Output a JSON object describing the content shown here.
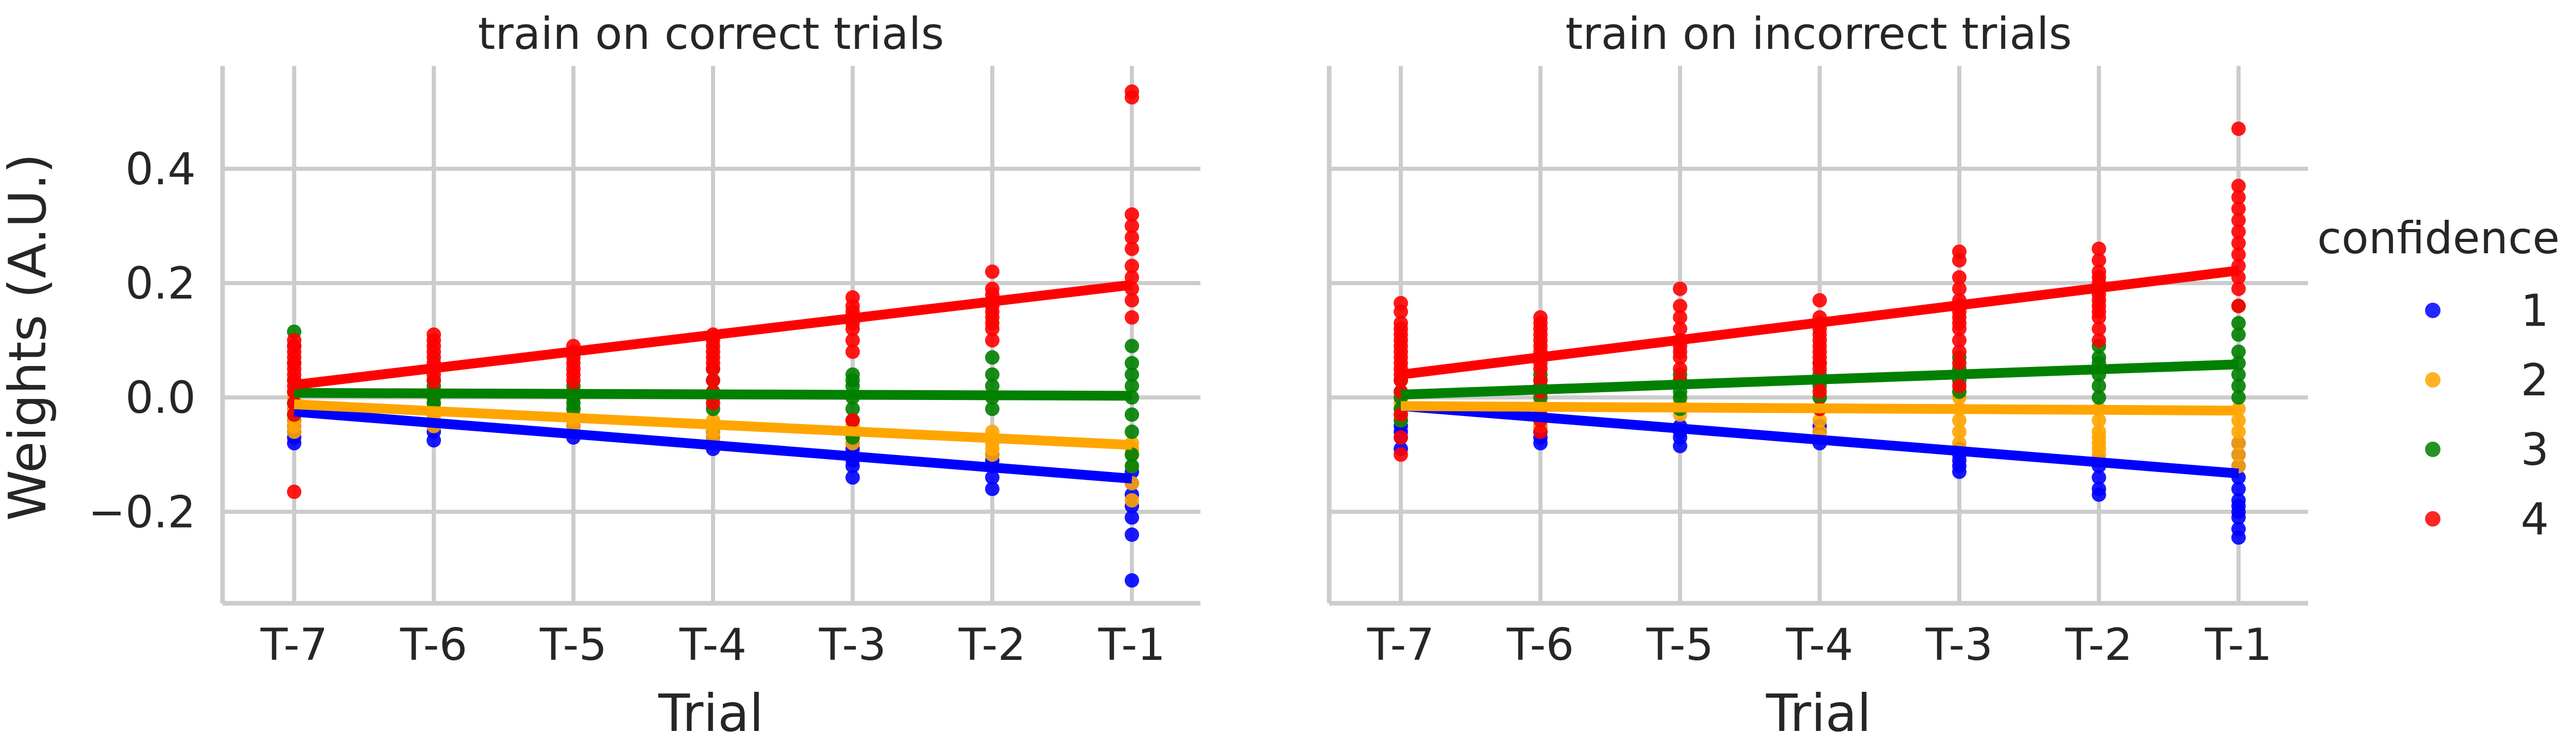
{
  "figure": {
    "ylabel": "Weights (A.U.)",
    "legend_title": "confidence",
    "legend_placement": "right"
  },
  "chart_data": [
    {
      "type": "scatter",
      "title": "train on correct trials",
      "xlabel": "Trial",
      "ylabel": "Weights (A.U.)",
      "categories": [
        "T-7",
        "T-6",
        "T-5",
        "T-4",
        "T-3",
        "T-2",
        "T-1"
      ],
      "yticks": [
        -0.2,
        0.0,
        0.2,
        0.4
      ],
      "ytick_labels": [
        "−0.2",
        "0.0",
        "0.2",
        "0.4"
      ],
      "ylim": [
        -0.36,
        0.58
      ],
      "grid": true,
      "series": [
        {
          "name": "1",
          "color": "#0000ff",
          "fit": {
            "start": -0.025,
            "end": -0.142
          },
          "points": [
            [
              -0.08,
              -0.07,
              -0.06,
              -0.05,
              -0.04,
              -0.03,
              -0.02
            ],
            [
              -0.075,
              -0.06,
              -0.05,
              -0.04,
              -0.03
            ],
            [
              -0.07,
              -0.06,
              -0.05,
              -0.04
            ],
            [
              -0.09,
              -0.08,
              -0.07,
              -0.06,
              -0.05
            ],
            [
              -0.14,
              -0.12,
              -0.11,
              -0.1,
              -0.09,
              -0.08
            ],
            [
              -0.16,
              -0.14,
              -0.12,
              -0.11,
              -0.1
            ],
            [
              -0.32,
              -0.24,
              -0.21,
              -0.19,
              -0.17,
              -0.15,
              -0.13
            ]
          ]
        },
        {
          "name": "2",
          "color": "#ffa500",
          "fit": {
            "start": -0.012,
            "end": -0.083
          },
          "points": [
            [
              -0.06,
              -0.05,
              -0.04,
              -0.02,
              0.0
            ],
            [
              -0.05,
              -0.04,
              -0.03,
              -0.02,
              -0.01
            ],
            [
              -0.05,
              -0.04,
              -0.03,
              -0.02
            ],
            [
              -0.07,
              -0.06,
              -0.05,
              -0.04
            ],
            [
              -0.08,
              -0.07,
              -0.06,
              -0.05,
              -0.04
            ],
            [
              -0.1,
              -0.09,
              -0.08,
              -0.07,
              -0.06
            ],
            [
              -0.18,
              -0.15,
              -0.12,
              -0.1,
              -0.09,
              -0.08
            ]
          ]
        },
        {
          "name": "3",
          "color": "#008000",
          "fit": {
            "start": 0.008,
            "end": 0.003
          },
          "points": [
            [
              0.115,
              0.09,
              0.06,
              0.03,
              0.01,
              -0.01,
              -0.03
            ],
            [
              0.03,
              0.02,
              0.01,
              0.0,
              -0.01,
              -0.02
            ],
            [
              0.02,
              0.01,
              0.0,
              -0.01,
              -0.02
            ],
            [
              0.05,
              0.03,
              0.01,
              0.0,
              -0.02
            ],
            [
              0.04,
              0.03,
              0.02,
              0.0,
              -0.02,
              -0.04,
              -0.07
            ],
            [
              0.07,
              0.04,
              0.02,
              0.0,
              -0.02
            ],
            [
              0.09,
              0.06,
              0.04,
              0.02,
              0.0,
              -0.03,
              -0.06,
              -0.1,
              -0.12
            ]
          ]
        },
        {
          "name": "4",
          "color": "#ff0000",
          "fit": {
            "start": 0.022,
            "end": 0.197
          },
          "points": [
            [
              0.1,
              0.09,
              0.08,
              0.07,
              0.06,
              0.05,
              0.04,
              0.03,
              0.02,
              0.01,
              -0.01,
              -0.03,
              -0.165
            ],
            [
              0.11,
              0.1,
              0.09,
              0.08,
              0.07,
              0.06,
              0.05,
              0.04,
              0.03,
              0.01
            ],
            [
              0.09,
              0.08,
              0.07,
              0.06,
              0.05,
              0.04,
              0.03,
              0.01
            ],
            [
              0.11,
              0.1,
              0.09,
              0.08,
              0.07,
              0.06,
              0.05,
              0.03,
              0.01,
              -0.01
            ],
            [
              0.175,
              0.16,
              0.15,
              0.14,
              0.13,
              0.12,
              0.1,
              0.08,
              -0.04
            ],
            [
              0.22,
              0.19,
              0.18,
              0.17,
              0.16,
              0.15,
              0.14,
              0.13,
              0.12,
              0.1
            ],
            [
              0.535,
              0.525,
              0.32,
              0.3,
              0.28,
              0.26,
              0.23,
              0.21,
              0.19,
              0.17,
              0.14
            ]
          ]
        }
      ]
    },
    {
      "type": "scatter",
      "title": "train on incorrect trials",
      "xlabel": "Trial",
      "ylabel": "",
      "categories": [
        "T-7",
        "T-6",
        "T-5",
        "T-4",
        "T-3",
        "T-2",
        "T-1"
      ],
      "yticks": [
        -0.2,
        0.0,
        0.2,
        0.4
      ],
      "ylim": [
        -0.36,
        0.58
      ],
      "grid": true,
      "series": [
        {
          "name": "1",
          "color": "#0000ff",
          "fit": {
            "start": -0.015,
            "end": -0.133
          },
          "points": [
            [
              -0.09,
              -0.07,
              -0.06,
              -0.05,
              -0.03
            ],
            [
              -0.08,
              -0.07,
              -0.06,
              -0.05,
              -0.04,
              -0.03
            ],
            [
              -0.085,
              -0.07,
              -0.06,
              -0.05
            ],
            [
              -0.08,
              -0.07,
              -0.06,
              -0.05
            ],
            [
              -0.13,
              -0.12,
              -0.11,
              -0.1,
              -0.09
            ],
            [
              -0.17,
              -0.16,
              -0.14,
              -0.12,
              -0.11
            ],
            [
              -0.245,
              -0.23,
              -0.21,
              -0.2,
              -0.19,
              -0.18,
              -0.16,
              -0.14,
              -0.12,
              -0.1,
              -0.08
            ]
          ]
        },
        {
          "name": "2",
          "color": "#ffa500",
          "fit": {
            "start": -0.015,
            "end": -0.023
          },
          "points": [
            [
              -0.04,
              -0.03,
              -0.02,
              -0.01
            ],
            [
              -0.05,
              -0.04,
              -0.03,
              -0.02,
              -0.01
            ],
            [
              -0.03,
              -0.02,
              -0.01,
              0.0
            ],
            [
              -0.07,
              -0.06,
              -0.04,
              -0.02,
              0.0
            ],
            [
              -0.08,
              -0.06,
              -0.04,
              -0.02,
              0.0
            ],
            [
              -0.1,
              -0.09,
              -0.08,
              -0.07,
              -0.06,
              -0.04,
              -0.02
            ],
            [
              -0.12,
              -0.1,
              -0.08,
              -0.06,
              -0.04,
              -0.02
            ]
          ]
        },
        {
          "name": "3",
          "color": "#008000",
          "fit": {
            "start": 0.005,
            "end": 0.058
          },
          "points": [
            [
              0.03,
              0.01,
              0.0,
              -0.02,
              -0.04
            ],
            [
              0.04,
              0.03,
              0.02,
              0.01,
              0.0,
              -0.02
            ],
            [
              0.04,
              0.03,
              0.01,
              0.0,
              -0.02
            ],
            [
              0.06,
              0.04,
              0.03,
              0.02,
              0.0,
              -0.02
            ],
            [
              0.07,
              0.05,
              0.04,
              0.03,
              0.01
            ],
            [
              0.09,
              0.07,
              0.06,
              0.04,
              0.02,
              0.0
            ],
            [
              0.16,
              0.13,
              0.11,
              0.08,
              0.06,
              0.04,
              0.02,
              0.0
            ]
          ]
        },
        {
          "name": "4",
          "color": "#ff0000",
          "fit": {
            "start": 0.04,
            "end": 0.222
          },
          "points": [
            [
              0.165,
              0.15,
              0.13,
              0.12,
              0.11,
              0.1,
              0.09,
              0.08,
              0.07,
              0.06,
              0.05,
              0.04,
              0.03,
              0.01,
              -0.03,
              -0.07,
              -0.1
            ],
            [
              0.14,
              0.13,
              0.12,
              0.11,
              0.1,
              0.09,
              0.08,
              0.07,
              0.06,
              0.05,
              0.03,
              0.01,
              -0.02,
              -0.04,
              -0.06
            ],
            [
              0.19,
              0.16,
              0.14,
              0.12,
              0.1,
              0.09,
              0.08,
              0.07,
              0.05,
              0.03
            ],
            [
              0.17,
              0.14,
              0.13,
              0.12,
              0.11,
              0.1,
              0.09,
              0.08,
              0.07,
              0.06,
              0.05,
              0.03,
              0.01,
              -0.02
            ],
            [
              0.255,
              0.24,
              0.21,
              0.19,
              0.17,
              0.16,
              0.15,
              0.14,
              0.13,
              0.12,
              0.1,
              0.08,
              0.06,
              0.02
            ],
            [
              0.26,
              0.24,
              0.22,
              0.21,
              0.2,
              0.19,
              0.18,
              0.17,
              0.16,
              0.15,
              0.14,
              0.12,
              0.1
            ],
            [
              0.47,
              0.37,
              0.35,
              0.33,
              0.31,
              0.29,
              0.27,
              0.25,
              0.23,
              0.21,
              0.19,
              0.16
            ]
          ]
        }
      ]
    }
  ]
}
